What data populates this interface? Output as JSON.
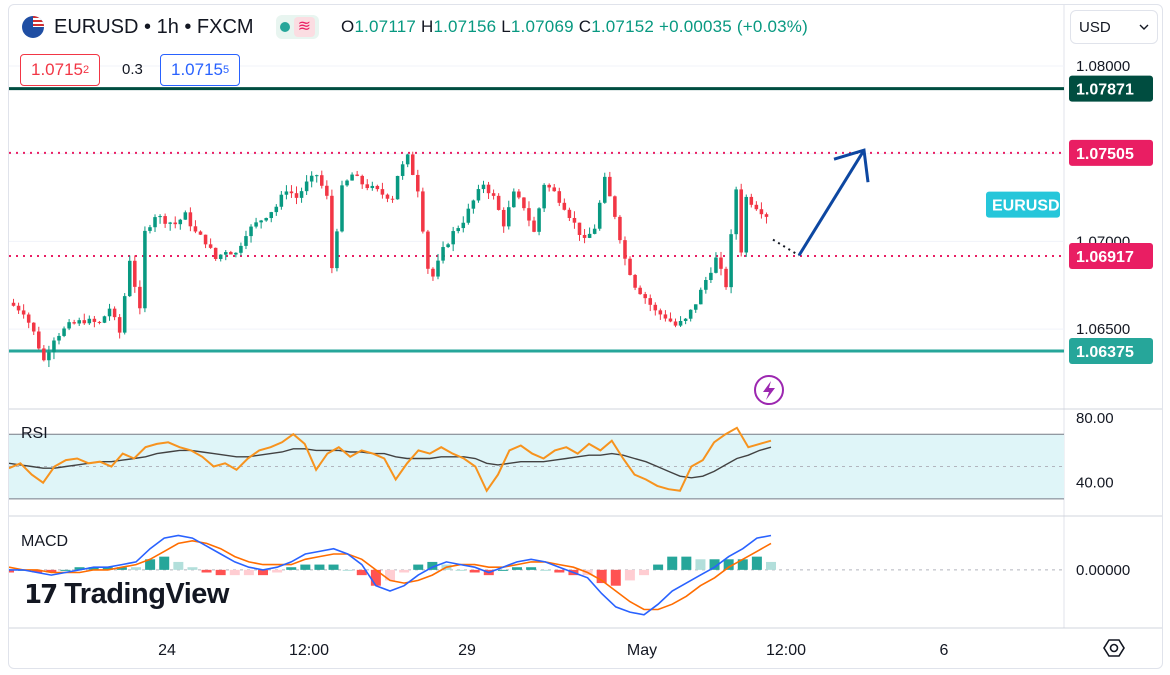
{
  "header": {
    "symbol": "EURUSD • 1h • FXCM",
    "ohlc": {
      "o_label": "O",
      "o_value": "1.07117",
      "h_label": "H",
      "h_value": "1.07156",
      "l_label": "L",
      "l_value": "1.07069",
      "c_label": "C",
      "c_value": "1.07152",
      "change": "+0.00035 (+0.03%)"
    },
    "wave_glyph": "≋"
  },
  "trade": {
    "sell_main": "1.0715",
    "sell_sup": "2",
    "spread": "0.3",
    "buy_main": "1.0715",
    "buy_sup": "5"
  },
  "currency_selector": {
    "value": "USD"
  },
  "logo": {
    "mark": "17",
    "text": "TradingView"
  },
  "panes": {
    "rsi_label": "RSI",
    "macd_label": "MACD"
  },
  "colors": {
    "up": "#089981",
    "down": "#f23645",
    "resistance": "#004d40",
    "support": "#26a69a",
    "dotted": "#e91e63",
    "arrow": "#0d47a1",
    "symbol_badge": "#26c6da",
    "rsi": "#f7931e",
    "rsi_ma": "#424242",
    "macd": "#2962ff",
    "signal": "#ff6d00",
    "lightning": "#9c27b0"
  },
  "chart_data": [
    {
      "type": "candlestick",
      "symbol": "EURUSD",
      "interval": "1h",
      "y_axis_ticks": [
        "1.08000",
        "1.07000",
        "1.06500"
      ],
      "ylim": [
        1.0605,
        1.0812
      ],
      "x_axis_ticks": [
        "24",
        "12:00",
        "29",
        "May",
        "12:00",
        "6"
      ],
      "horizontal_levels": [
        {
          "value": 1.07871,
          "label": "1.07871",
          "style": "solid",
          "color": "#004d40"
        },
        {
          "value": 1.07505,
          "label": "1.07505",
          "style": "dotted",
          "color": "#e91e63"
        },
        {
          "value": 1.06917,
          "label": "1.06917",
          "style": "dotted",
          "color": "#e91e63"
        },
        {
          "value": 1.06375,
          "label": "1.06375",
          "style": "solid",
          "color": "#26a69a"
        }
      ],
      "current_price_label": "EURUSD",
      "projection_arrow": {
        "from_price": 1.0692,
        "to_price": 1.0752,
        "style": "arrow",
        "color": "#0d47a1"
      },
      "price_path": [
        [
          0,
          1.0665
        ],
        [
          3,
          1.066
        ],
        [
          5,
          1.0648
        ],
        [
          7,
          1.0632
        ],
        [
          9,
          1.0645
        ],
        [
          12,
          1.0652
        ],
        [
          15,
          1.0655
        ],
        [
          18,
          1.0653
        ],
        [
          20,
          1.0662
        ],
        [
          22,
          1.0648
        ],
        [
          24,
          1.069
        ],
        [
          26,
          1.066
        ],
        [
          27,
          1.0705
        ],
        [
          29,
          1.0715
        ],
        [
          31,
          1.0712
        ],
        [
          33,
          1.071
        ],
        [
          35,
          1.0715
        ],
        [
          37,
          1.0705
        ],
        [
          39,
          1.07
        ],
        [
          41,
          1.069
        ],
        [
          43,
          1.0695
        ],
        [
          45,
          1.0693
        ],
        [
          47,
          1.0705
        ],
        [
          49,
          1.071
        ],
        [
          51,
          1.0715
        ],
        [
          53,
          1.072
        ],
        [
          55,
          1.073
        ],
        [
          57,
          1.0725
        ],
        [
          59,
          1.0733
        ],
        [
          61,
          1.0738
        ],
        [
          63,
          1.0725
        ],
        [
          64,
          1.0685
        ],
        [
          66,
          1.073
        ],
        [
          68,
          1.0738
        ],
        [
          70,
          1.0733
        ],
        [
          72,
          1.073
        ],
        [
          74,
          1.0727
        ],
        [
          76,
          1.0725
        ],
        [
          77,
          1.0738
        ],
        [
          79,
          1.0748
        ],
        [
          81,
          1.073
        ],
        [
          83,
          1.0685
        ],
        [
          84,
          1.068
        ],
        [
          86,
          1.0695
        ],
        [
          88,
          1.0705
        ],
        [
          90,
          1.0712
        ],
        [
          92,
          1.0723
        ],
        [
          94,
          1.0733
        ],
        [
          96,
          1.0725
        ],
        [
          98,
          1.071
        ],
        [
          100,
          1.0727
        ],
        [
          102,
          1.072
        ],
        [
          104,
          1.0705
        ],
        [
          106,
          1.0733
        ],
        [
          108,
          1.0728
        ],
        [
          110,
          1.072
        ],
        [
          112,
          1.071
        ],
        [
          114,
          1.07
        ],
        [
          116,
          1.0708
        ],
        [
          118,
          1.0735
        ],
        [
          120,
          1.0715
        ],
        [
          122,
          1.069
        ],
        [
          124,
          1.0675
        ],
        [
          126,
          1.0668
        ],
        [
          128,
          1.066
        ],
        [
          130,
          1.0657
        ],
        [
          132,
          1.0652
        ],
        [
          134,
          1.0655
        ],
        [
          136,
          1.0665
        ],
        [
          138,
          1.0678
        ],
        [
          140,
          1.069
        ],
        [
          142,
          1.0675
        ],
        [
          144,
          1.073
        ],
        [
          145,
          1.0695
        ],
        [
          146,
          1.0725
        ],
        [
          148,
          1.072
        ],
        [
          150,
          1.0715
        ]
      ]
    },
    {
      "type": "line",
      "name": "RSI",
      "y_axis_ticks": [
        "80.00",
        "40.00"
      ],
      "ylim": [
        20,
        85
      ],
      "bands": [
        30,
        70
      ],
      "series": [
        {
          "name": "RSI",
          "values": [
            49,
            52,
            45,
            40,
            50,
            54,
            55,
            52,
            53,
            50,
            58,
            55,
            62,
            64,
            65,
            62,
            60,
            56,
            50,
            52,
            48,
            55,
            60,
            62,
            65,
            70,
            64,
            48,
            58,
            62,
            56,
            60,
            58,
            55,
            42,
            52,
            60,
            58,
            62,
            58,
            55,
            50,
            35,
            45,
            60,
            63,
            58,
            55,
            60,
            62,
            58,
            64,
            60,
            66,
            55,
            45,
            42,
            38,
            36,
            35,
            50,
            54,
            65,
            70,
            74,
            62,
            64,
            66
          ]
        },
        {
          "name": "MA",
          "values": [
            52,
            51,
            50,
            49,
            49,
            50,
            51,
            52,
            53,
            53,
            54,
            55,
            56,
            58,
            59,
            60,
            60,
            59,
            58,
            57,
            56,
            56,
            57,
            58,
            59,
            61,
            61,
            60,
            60,
            60,
            59,
            59,
            58,
            58,
            56,
            55,
            55,
            55,
            56,
            56,
            56,
            55,
            52,
            51,
            52,
            53,
            53,
            53,
            54,
            55,
            56,
            57,
            57,
            58,
            57,
            55,
            53,
            50,
            47,
            44,
            43,
            44,
            47,
            51,
            55,
            57,
            60,
            62
          ]
        }
      ]
    },
    {
      "type": "line",
      "name": "MACD",
      "y_axis_ticks": [
        "0.00000"
      ],
      "ylim": [
        -0.0022,
        0.002
      ],
      "series": [
        {
          "name": "MACD",
          "values": [
            0,
            0,
            -0.0001,
            -0.0002,
            -0.0001,
            0,
            0.0001,
            0.0001,
            0.0002,
            0.0003,
            0.0008,
            0.0012,
            0.0013,
            0.0012,
            0.0009,
            0.0006,
            0.0003,
            0.0001,
            0,
            0.0001,
            0.0003,
            0.0006,
            0.0007,
            0.0008,
            0.0006,
            0.0002,
            -0.0006,
            -0.0008,
            -0.0006,
            -0.0002,
            0.0001,
            0.0003,
            0.0002,
            0.0001,
            -0.0001,
            0.0001,
            0.0003,
            0.0004,
            0.0003,
            0.0001,
            -0.0001,
            -0.0003,
            -0.0009,
            -0.0014,
            -0.0016,
            -0.0017,
            -0.0013,
            -0.0008,
            -0.0005,
            -0.0002,
            0.0001,
            0.0005,
            0.0008,
            0.0012,
            0.0013
          ]
        },
        {
          "name": "Signal",
          "values": [
            0.0001,
            0,
            0,
            -0.0001,
            -0.0001,
            -0.0001,
            0,
            0,
            0.0001,
            0.0002,
            0.0004,
            0.0007,
            0.001,
            0.0011,
            0.001,
            0.0008,
            0.0005,
            0.0003,
            0.0002,
            0.0002,
            0.0002,
            0.0004,
            0.0005,
            0.0006,
            0.0006,
            0.0004,
            0,
            -0.0004,
            -0.0005,
            -0.0004,
            -0.0002,
            0.0001,
            0.0002,
            0.0002,
            0.0001,
            0.0001,
            0.0002,
            0.0003,
            0.0003,
            0.0002,
            0.0001,
            -0.0001,
            -0.0004,
            -0.0008,
            -0.0012,
            -0.0015,
            -0.0015,
            -0.0013,
            -0.001,
            -0.0006,
            -0.0003,
            0.0001,
            0.0004,
            0.0007,
            0.001
          ]
        }
      ]
    }
  ]
}
